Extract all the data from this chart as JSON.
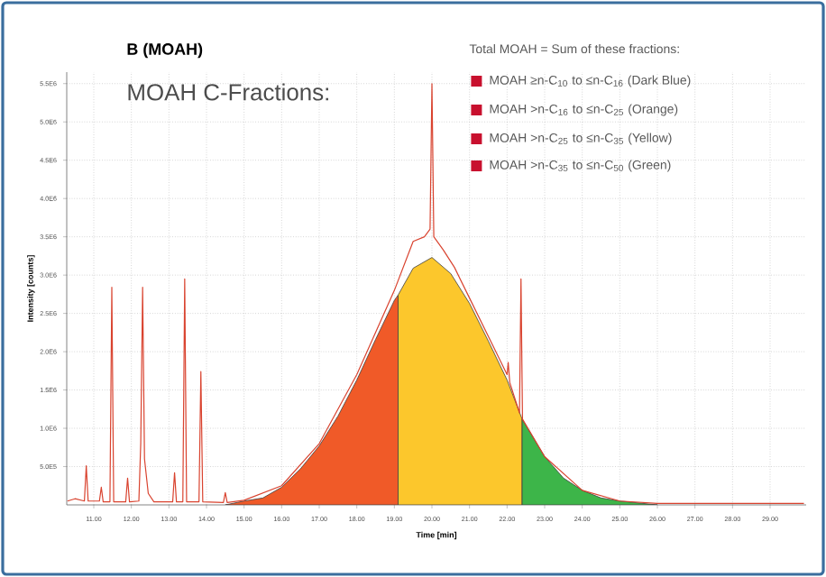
{
  "chart_data": {
    "type": "area",
    "title": "B (MOAH)",
    "subtitle": "MOAH C-Fractions:",
    "legend_title": "Total MOAH = Sum of these fractions:",
    "annotations": [
      "MOAH ≥n-C$_{10}$ to ≤n-C$_{16}$ (Dark Blue)",
      "MOAH >n-C$_{16}$ to ≤n-C$_{25}$ (Orange)",
      "MOAH >n-C$_{25}$ to ≤n-C$_{35}$ (Yellow)",
      "MOAH >n-C$_{35}$ to ≤n-C$_{50}$ (Green)"
    ],
    "xlabel": "Time [min]",
    "ylabel": "Intensity [counts]",
    "grid": true,
    "xlim": [
      10.28,
      29.96
    ],
    "ylim": [
      0,
      5650000
    ],
    "xticks": [
      {
        "value": 11,
        "label": "11.00"
      },
      {
        "value": 12,
        "label": "12.00"
      },
      {
        "value": 13,
        "label": "13.00"
      },
      {
        "value": 14,
        "label": "14.00"
      },
      {
        "value": 15,
        "label": "15.00"
      },
      {
        "value": 16,
        "label": "16.00"
      },
      {
        "value": 17,
        "label": "17.00"
      },
      {
        "value": 18,
        "label": "18.00"
      },
      {
        "value": 19,
        "label": "19.00"
      },
      {
        "value": 20,
        "label": "20.00"
      },
      {
        "value": 21,
        "label": "21.00"
      },
      {
        "value": 22,
        "label": "22.00"
      },
      {
        "value": 23,
        "label": "23.00"
      },
      {
        "value": 24,
        "label": "24.00"
      },
      {
        "value": 25,
        "label": "25.00"
      },
      {
        "value": 26,
        "label": "26.00"
      },
      {
        "value": 27,
        "label": "27.00"
      },
      {
        "value": 28,
        "label": "28.00"
      },
      {
        "value": 29,
        "label": "29.00"
      }
    ],
    "yticks": [
      {
        "value": 500000,
        "label": "5.0E5"
      },
      {
        "value": 1000000,
        "label": "1.0E6"
      },
      {
        "value": 1500000,
        "label": "1.5E6"
      },
      {
        "value": 2000000,
        "label": "2.0E6"
      },
      {
        "value": 2500000,
        "label": "2.5E6"
      },
      {
        "value": 3000000,
        "label": "3.0E6"
      },
      {
        "value": 3500000,
        "label": "3.5E6"
      },
      {
        "value": 4000000,
        "label": "4.0E6"
      },
      {
        "value": 4500000,
        "label": "4.5E6"
      },
      {
        "value": 5000000,
        "label": "5.0E6"
      },
      {
        "value": 5500000,
        "label": "5.5E6"
      }
    ],
    "series": [
      {
        "color": "#f05a28",
        "x": [
          14.5,
          15,
          15.5,
          16,
          16.5,
          17,
          17.5,
          18,
          18.5,
          19,
          19.1
        ],
        "values": [
          0,
          50000,
          90000,
          230000,
          470000,
          770000,
          1160000,
          1630000,
          2160000,
          2670000,
          2740000
        ]
      },
      {
        "color": "#fcc72c",
        "x": [
          19.1,
          19.5,
          20,
          20.5,
          21,
          21.5,
          22,
          22.4
        ],
        "values": [
          2740000,
          3090000,
          3230000,
          3020000,
          2630000,
          2140000,
          1630000,
          1120000
        ]
      },
      {
        "color": "#3db549",
        "x": [
          22.4,
          23,
          23.5,
          24,
          24.5,
          25,
          26
        ],
        "values": [
          1120000,
          630000,
          350000,
          190000,
          90000,
          50000,
          0
        ]
      },
      {
        "type": "line",
        "color": "#d9432f",
        "x": [
          10.3,
          10.5,
          10.75,
          10.8,
          10.85,
          11.15,
          11.2,
          11.25,
          11.43,
          11.48,
          11.53,
          11.85,
          11.9,
          11.95,
          12.2,
          12.25,
          12.3,
          12.35,
          12.45,
          12.6,
          13.1,
          13.15,
          13.2,
          13.37,
          13.42,
          13.47,
          13.8,
          13.85,
          13.9,
          14.45,
          14.5,
          14.55,
          15,
          16,
          17,
          18,
          18.5,
          19,
          19.5,
          19.8,
          19.95,
          20,
          20.05,
          20.3,
          20.6,
          21,
          21.5,
          22,
          22.03,
          22.07,
          22.33,
          22.37,
          22.41,
          23,
          24,
          25,
          26,
          29.9
        ],
        "values": [
          50000,
          80000,
          50000,
          510000,
          50000,
          50000,
          230000,
          40000,
          40000,
          2840000,
          40000,
          40000,
          350000,
          40000,
          50000,
          800000,
          2840000,
          600000,
          150000,
          40000,
          40000,
          420000,
          40000,
          40000,
          2950000,
          40000,
          40000,
          1740000,
          40000,
          30000,
          160000,
          30000,
          60000,
          250000,
          800000,
          1700000,
          2250000,
          2800000,
          3440000,
          3500000,
          3600000,
          5500000,
          3500000,
          3330000,
          3100000,
          2700000,
          2200000,
          1700000,
          1860000,
          1600000,
          1200000,
          2950000,
          1120000,
          630000,
          190000,
          50000,
          20000,
          20000
        ]
      }
    ]
  }
}
